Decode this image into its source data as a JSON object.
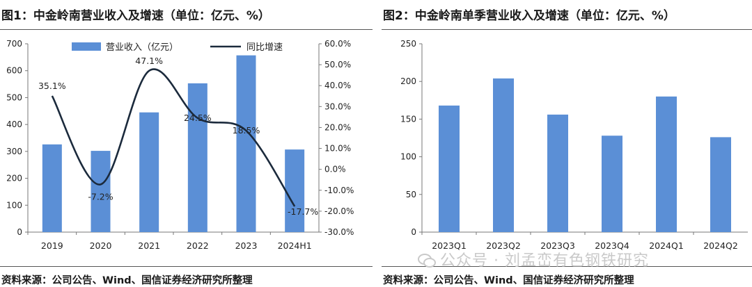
{
  "source_note": "资料来源：公司公告、Wind、国信证券经济研究所整理",
  "watermark": "公众号 · 刘孟峦有色钢铁研究",
  "chart_data": [
    {
      "type": "bar",
      "title": "图1：中金岭南营业收入及增速（单位：亿元、%）",
      "categories": [
        "2019",
        "2020",
        "2021",
        "2022",
        "2023",
        "2024H1"
      ],
      "series": [
        {
          "name": "营业收入（亿元）",
          "type": "bar",
          "axis": "left",
          "color": "#5b8fd6",
          "values": [
            326,
            302,
            445,
            553,
            657,
            307
          ]
        },
        {
          "name": "同比增速",
          "type": "line",
          "axis": "right",
          "color": "#1b2a3c",
          "values": [
            35.1,
            -7.2,
            47.1,
            24.5,
            18.5,
            -17.7
          ],
          "labels": [
            "35.1%",
            "-7.2%",
            "47.1%",
            "24.5%",
            "18.5%",
            "-17.7%"
          ]
        }
      ],
      "ylim": [
        0,
        700
      ],
      "yticks": [
        "0",
        "100",
        "200",
        "300",
        "400",
        "500",
        "600",
        "700"
      ],
      "ylim_right": [
        -30,
        60
      ],
      "yticks_right": [
        "-30.0%",
        "-20.0%",
        "-10.0%",
        "0.0%",
        "10.0%",
        "20.0%",
        "30.0%",
        "40.0%",
        "50.0%",
        "60.0%"
      ],
      "legend": "top"
    },
    {
      "type": "bar",
      "title": "图2：中金岭南单季营业收入及增速（单位：亿元、%）",
      "categories": [
        "2023Q1",
        "2023Q2",
        "2023Q3",
        "2023Q4",
        "2024Q1",
        "2024Q2"
      ],
      "values": [
        168,
        204,
        156,
        128,
        180,
        126
      ],
      "color": "#5b8fd6",
      "ylim": [
        0,
        250
      ],
      "yticks": [
        "0",
        "50",
        "100",
        "150",
        "200",
        "250"
      ]
    }
  ]
}
